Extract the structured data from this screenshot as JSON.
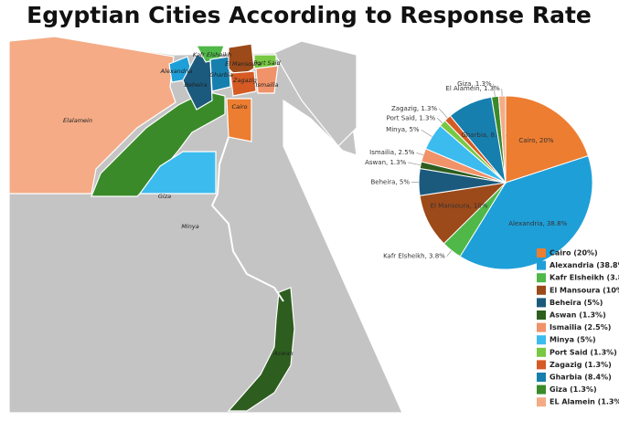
{
  "title": "Egyptian Cities According to Response Rate",
  "map": {
    "regions": [
      {
        "label": "Elalamein"
      },
      {
        "label": "Giza"
      },
      {
        "label": "Minya"
      },
      {
        "label": "Aswan"
      },
      {
        "label": "Alexandria"
      },
      {
        "label": "Beheira"
      },
      {
        "label": "Kafr Elsheikh"
      },
      {
        "label": "El Mansoura"
      },
      {
        "label": "Gharbia"
      },
      {
        "label": "Port Said"
      },
      {
        "label": "Zagazig"
      },
      {
        "label": "Ismailia"
      },
      {
        "label": "Cairo"
      }
    ]
  },
  "chart_data": {
    "type": "pie",
    "values": [
      20,
      38.8,
      3.8,
      10,
      5,
      1.3,
      2.5,
      5,
      1.3,
      1.3,
      8.4,
      1.3,
      1.3
    ],
    "value_labels": [
      "Cairo, 20%",
      "Alexandria, 38.8%",
      "Kafr Elsheikh, 3.8%",
      "El Mansoura, 10%",
      "Beheira, 5%",
      "Aswan, 1.3%",
      "Ismailia, 2.5%",
      "Minya, 5%",
      "Port Said, 1.3%",
      "Zagazig, 1.3%",
      "Gharbia, 8.4%",
      "Giza, 1.3%",
      "El Alamein, 1.3%"
    ],
    "legend": [
      "Cairo (20%)",
      "Alexandria (38.8%)",
      "Kafr Elsheikh (3.8%)",
      "El Mansoura (10%)",
      "Beheira (5%)",
      "Aswan (1.3%)",
      "Ismailia (2.5%)",
      "Minya (5%)",
      "Port Said (1.3%)",
      "Zagazig (1.3%)",
      "Gharbia (8.4%)",
      "Giza (1.3%)",
      "EL Alamein (1.3%)"
    ],
    "colors": [
      "#ed7d31",
      "#1f9fd8",
      "#4fb848",
      "#9c4a1a",
      "#1c5a7d",
      "#2e5e1f",
      "#f0926a",
      "#3cbbef",
      "#78c843",
      "#d65a24",
      "#167fad",
      "#3a8a2a",
      "#f4ab86"
    ]
  }
}
